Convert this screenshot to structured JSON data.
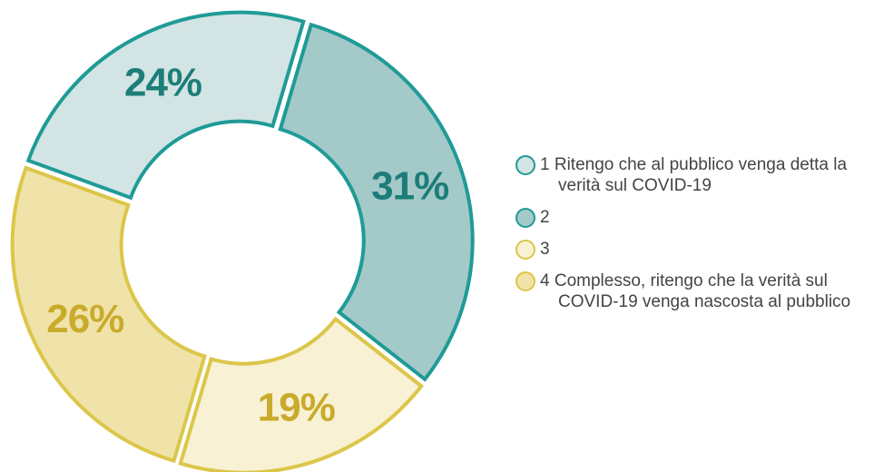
{
  "chart_data": {
    "type": "donut",
    "categories": [
      "1 Ritengo che al pubblico venga detta la verità sul COVID-19",
      "2",
      "3",
      "4 Complesso, ritengo che la verità sul COVID-19 venga nascosta al pubblico"
    ],
    "values": [
      24,
      31,
      19,
      26
    ],
    "value_labels": [
      "24%",
      "31%",
      "19%",
      "26%"
    ],
    "colors": [
      "#d3e4e4",
      "#a4c9c9",
      "#f8f1d4",
      "#f0e3a9"
    ],
    "edge_colors": [
      "#1f9b97",
      "#1f9b97",
      "#dcc649",
      "#dcc649"
    ],
    "label_colors": [
      "#1c7d79",
      "#1c7d79",
      "#c9ab2c",
      "#c9ab2c"
    ]
  }
}
